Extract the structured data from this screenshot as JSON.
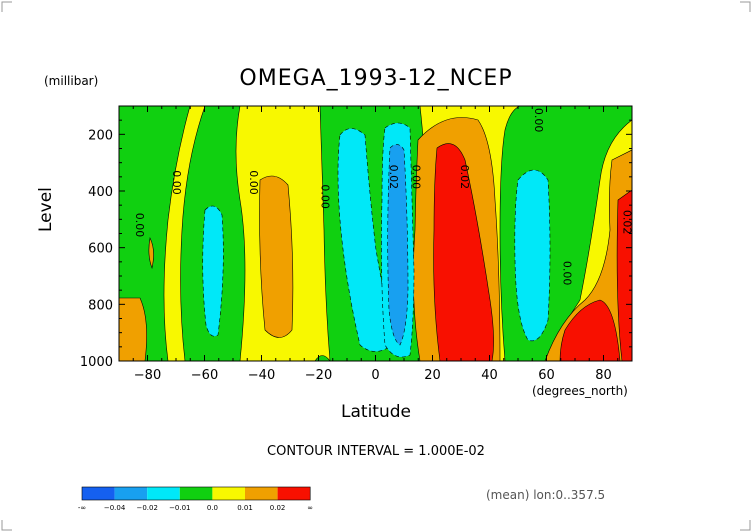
{
  "chart_data": {
    "type": "heatmap",
    "title": "OMEGA_1993-12_NCEP",
    "unit_label": "(millibar)",
    "ylabel": "Level",
    "xlabel": "Latitude",
    "x_unit_label": "(degrees_north)",
    "xlim": [
      -90,
      90
    ],
    "ylim": [
      1000,
      100
    ],
    "x_ticks": [
      -80,
      -60,
      -40,
      -20,
      0,
      20,
      40,
      60,
      80
    ],
    "x_tick_labels": [
      "−80",
      "−60",
      "−40",
      "−20",
      "0",
      "20",
      "40",
      "60",
      "80"
    ],
    "y_ticks": [
      200,
      400,
      600,
      800,
      1000
    ],
    "y_tick_labels": [
      "200",
      "400",
      "600",
      "800",
      "1000"
    ],
    "contour_interval_text": "CONTOUR INTERVAL = 1.000E-02",
    "footer_text": "(mean) lon:0..357.5",
    "colorbar": {
      "colors": [
        "#1560f0",
        "#18a0f0",
        "#00e8f8",
        "#10d010",
        "#f8f800",
        "#f0a000",
        "#f81000"
      ],
      "labels": [
        "-∞",
        "−0.04",
        "−0.02",
        "−0.01",
        "0.0",
        "0.01",
        "0.02",
        "∞"
      ]
    },
    "contour_labels": [
      {
        "text": "0.00",
        "lat": -84,
        "lev": 520
      },
      {
        "text": "0.00",
        "lat": -71,
        "lev": 370
      },
      {
        "text": "0.00",
        "lat": -44,
        "lev": 370
      },
      {
        "text": "0.00",
        "lat": -19,
        "lev": 420
      },
      {
        "text": "0.02",
        "lat": 5,
        "lev": 350
      },
      {
        "text": "0.00",
        "lat": 13,
        "lev": 350
      },
      {
        "text": "0.02",
        "lat": 30,
        "lev": 350
      },
      {
        "text": "0.00",
        "lat": 56,
        "lev": 150
      },
      {
        "text": "0.00",
        "lat": 66,
        "lev": 690
      },
      {
        "text": "0.02",
        "lat": 87,
        "lev": 510
      }
    ]
  }
}
